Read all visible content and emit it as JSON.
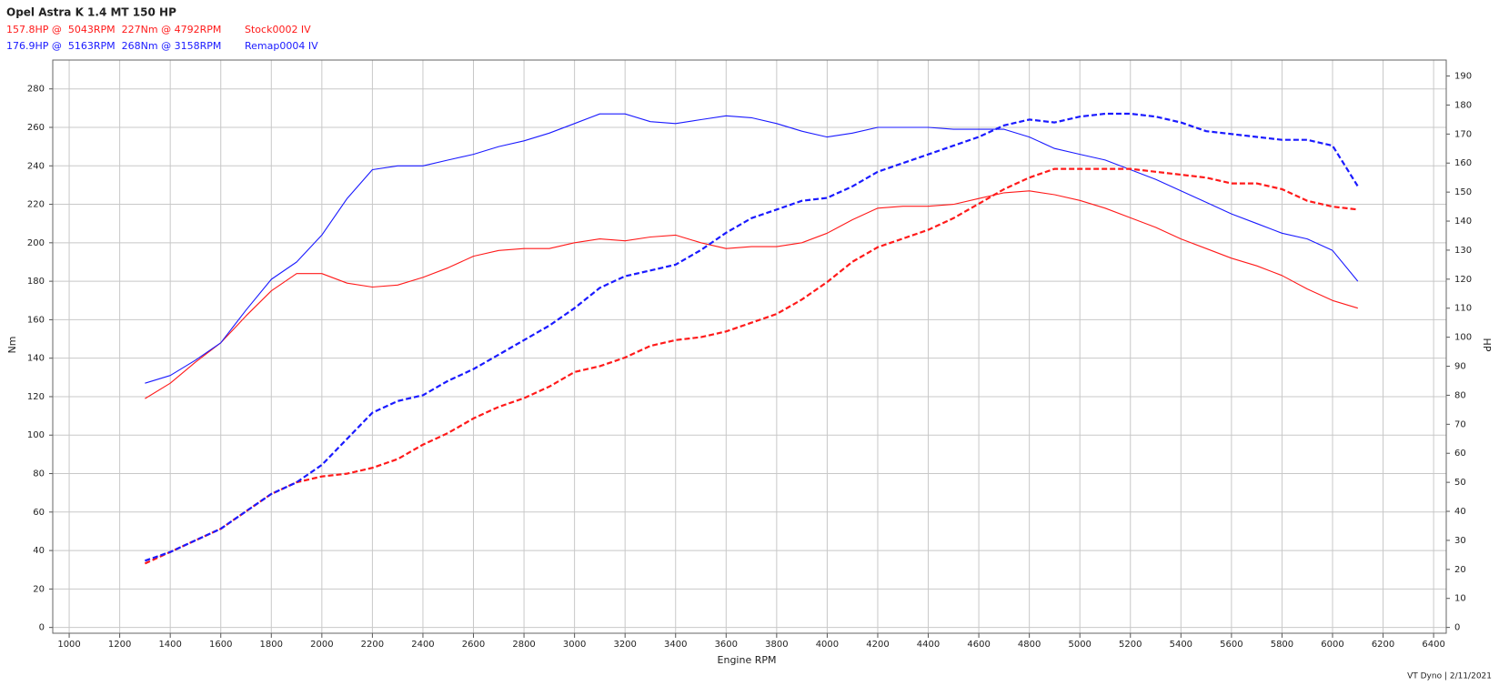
{
  "chart_data": {
    "type": "line",
    "title": "Opel Astra K 1.4 MT 150 HP",
    "runs": [
      {
        "summary": "157.8HP @  5043RPM  227Nm @ 4792RPM",
        "name": "Stock0002 IV",
        "color": "#ff1a1a"
      },
      {
        "summary": "176.9HP @  5163RPM  268Nm @ 3158RPM",
        "name": "Remap0004 IV",
        "color": "#1a1aff"
      }
    ],
    "x_label": "Engine RPM",
    "y_label": "Nm",
    "y2_label": "HP",
    "footer": "VT Dyno | 2/11/2021",
    "x": [
      1300,
      1400,
      1500,
      1600,
      1700,
      1800,
      1900,
      2000,
      2100,
      2200,
      2300,
      2400,
      2500,
      2600,
      2700,
      2800,
      2900,
      3000,
      3100,
      3200,
      3300,
      3400,
      3500,
      3600,
      3700,
      3800,
      3900,
      4000,
      4100,
      4200,
      4300,
      4400,
      4500,
      4600,
      4700,
      4800,
      4900,
      5000,
      5100,
      5200,
      5300,
      5400,
      5500,
      5600,
      5700,
      5800,
      5900,
      6000,
      6100
    ],
    "series": [
      {
        "run": 0,
        "color": "#ff1a1a",
        "dashed": false,
        "values": [
          119,
          127,
          138,
          148,
          162,
          175,
          184,
          184,
          179,
          177,
          178,
          182,
          187,
          193,
          196,
          197,
          197,
          200,
          202,
          201,
          203,
          204,
          200,
          197,
          198,
          198,
          200,
          205,
          212,
          218,
          219,
          219,
          220,
          223,
          226,
          227,
          225,
          222,
          218,
          213,
          208,
          202,
          197,
          192,
          188,
          183,
          176,
          170,
          166
        ]
      },
      {
        "run": 1,
        "color": "#1a1aff",
        "dashed": false,
        "values": [
          127,
          131,
          139,
          148,
          165,
          181,
          190,
          204,
          223,
          238,
          240,
          240,
          243,
          246,
          250,
          253,
          257,
          262,
          267,
          267,
          263,
          262,
          264,
          266,
          265,
          262,
          258,
          255,
          257,
          260,
          260,
          260,
          259,
          259,
          259,
          255,
          249,
          246,
          243,
          238,
          233,
          227,
          221,
          215,
          210,
          205,
          202,
          196,
          180
        ]
      },
      {
        "run": 0,
        "color": "#ff1a1a",
        "dashed": true,
        "axis": "y2",
        "values": [
          22,
          26,
          30,
          34,
          40,
          46,
          50,
          52,
          53,
          55,
          58,
          63,
          67,
          72,
          76,
          79,
          83,
          88,
          90,
          93,
          97,
          99,
          100,
          102,
          105,
          108,
          113,
          119,
          126,
          131,
          134,
          137,
          141,
          146,
          151,
          155,
          158,
          158,
          158,
          158,
          157,
          156,
          155,
          153,
          153,
          151,
          147,
          145,
          144
        ]
      },
      {
        "run": 1,
        "color": "#1a1aff",
        "dashed": true,
        "axis": "y2",
        "values": [
          23,
          26,
          30,
          34,
          40,
          46,
          50,
          56,
          65,
          74,
          78,
          80,
          85,
          89,
          94,
          99,
          104,
          110,
          117,
          121,
          123,
          125,
          130,
          136,
          141,
          144,
          147,
          148,
          152,
          157,
          160,
          163,
          166,
          169,
          173,
          175,
          174,
          176,
          177,
          177,
          176,
          174,
          171,
          170,
          169,
          168,
          168,
          166,
          152
        ]
      }
    ],
    "xlim": [
      935,
      6450
    ],
    "ylim": [
      -3,
      295
    ],
    "y2lim": [
      -2,
      195.5
    ],
    "xticks": [
      1000,
      1200,
      1400,
      1600,
      1800,
      2000,
      2200,
      2400,
      2600,
      2800,
      3000,
      3200,
      3400,
      3600,
      3800,
      4000,
      4200,
      4400,
      4600,
      4800,
      5000,
      5200,
      5400,
      5600,
      5800,
      6000,
      6200,
      6400
    ],
    "yticks": [
      0,
      20,
      40,
      60,
      80,
      100,
      120,
      140,
      160,
      180,
      200,
      220,
      240,
      260,
      280
    ],
    "y2ticks": [
      0,
      10,
      20,
      30,
      40,
      50,
      60,
      70,
      80,
      90,
      100,
      110,
      120,
      130,
      140,
      150,
      160,
      170,
      180,
      190
    ],
    "grid": true
  }
}
